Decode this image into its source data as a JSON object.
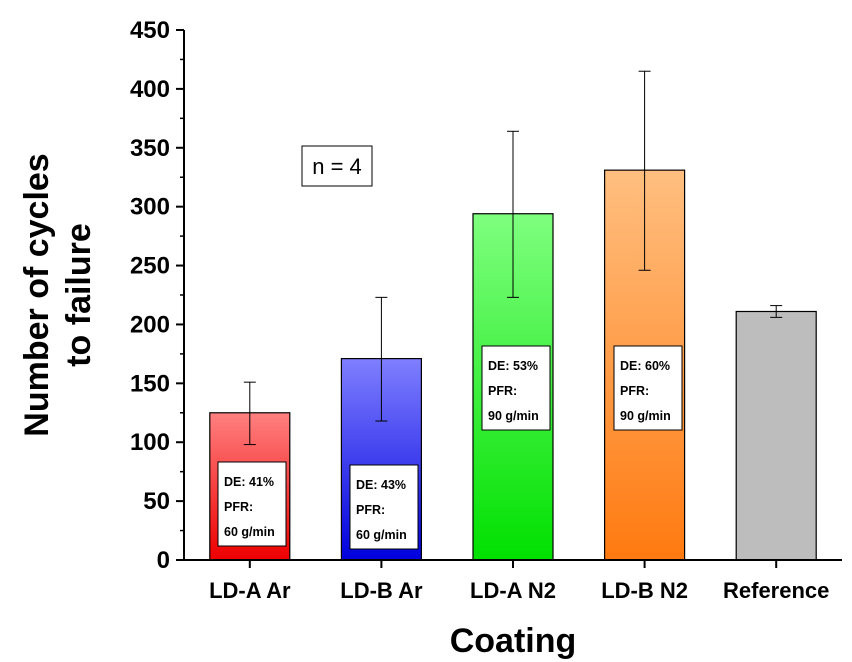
{
  "chart_data": {
    "type": "bar",
    "title": "",
    "xlabel": "Coating",
    "ylabel_lines": [
      "Number of cycles",
      "to failure"
    ],
    "categories": [
      "LD-A Ar",
      "LD-B Ar",
      "LD-A N2",
      "LD-B N2",
      "Reference"
    ],
    "values": [
      125,
      171,
      294,
      331,
      211
    ],
    "error_low": [
      98,
      118,
      223,
      246,
      206
    ],
    "error_high": [
      151,
      223,
      364,
      415,
      216
    ],
    "ylim": [
      0,
      450
    ],
    "yticks": [
      "0",
      "50",
      "100",
      "150",
      "200",
      "250",
      "300",
      "350",
      "400",
      "450"
    ],
    "colors": [
      {
        "top": "#ff8080",
        "bottom": "#ee0000"
      },
      {
        "top": "#7f7fff",
        "bottom": "#0000dd"
      },
      {
        "top": "#7fff7f",
        "bottom": "#00e000"
      },
      {
        "top": "#ffbf80",
        "bottom": "#ff7a10"
      },
      {
        "top": "#bdbdbd",
        "bottom": "#bdbdbd"
      }
    ],
    "annotations": [
      {
        "category": "LD-A Ar",
        "lines": [
          "DE: 41%",
          "PFR:",
          "60 g/min"
        ]
      },
      {
        "category": "LD-B Ar",
        "lines": [
          "DE: 43%",
          "PFR:",
          "60 g/min"
        ]
      },
      {
        "category": "LD-A N2",
        "lines": [
          "DE: 53%",
          "PFR:",
          "90 g/min"
        ]
      },
      {
        "category": "LD-B N2",
        "lines": [
          "DE: 60%",
          "PFR:",
          "90 g/min"
        ]
      }
    ],
    "note": "n = 4"
  }
}
